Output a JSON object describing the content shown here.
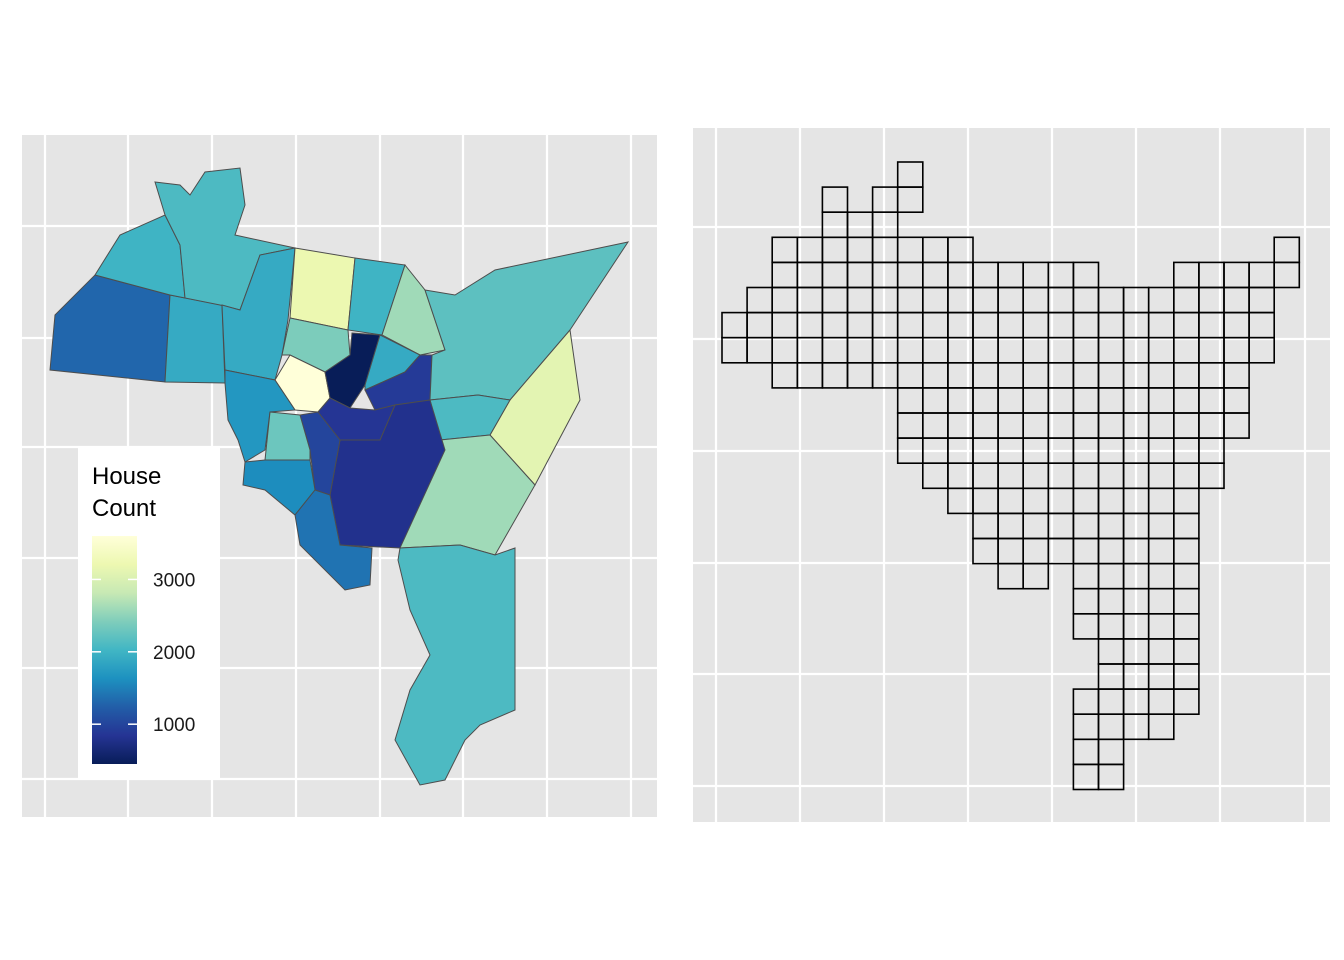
{
  "legend": {
    "title_lines": [
      "House",
      "Count"
    ],
    "ticks": [
      1000,
      2000,
      3000
    ],
    "limits": [
      450,
      3600
    ],
    "colors": [
      "#081d58",
      "#253494",
      "#225ea8",
      "#1d91c0",
      "#41b6c4",
      "#7fcdbb",
      "#c7e9b4",
      "#edf8b1",
      "#ffffd9"
    ]
  },
  "regions": {
    "values": [
      1300,
      1900,
      2000,
      2100,
      1900,
      3200,
      2000,
      2600,
      2400,
      3600,
      450,
      1900,
      900,
      2200,
      3100,
      2100,
      2600,
      2100,
      800,
      850,
      1000,
      1700,
      2300,
      1600,
      1400
    ]
  }
}
